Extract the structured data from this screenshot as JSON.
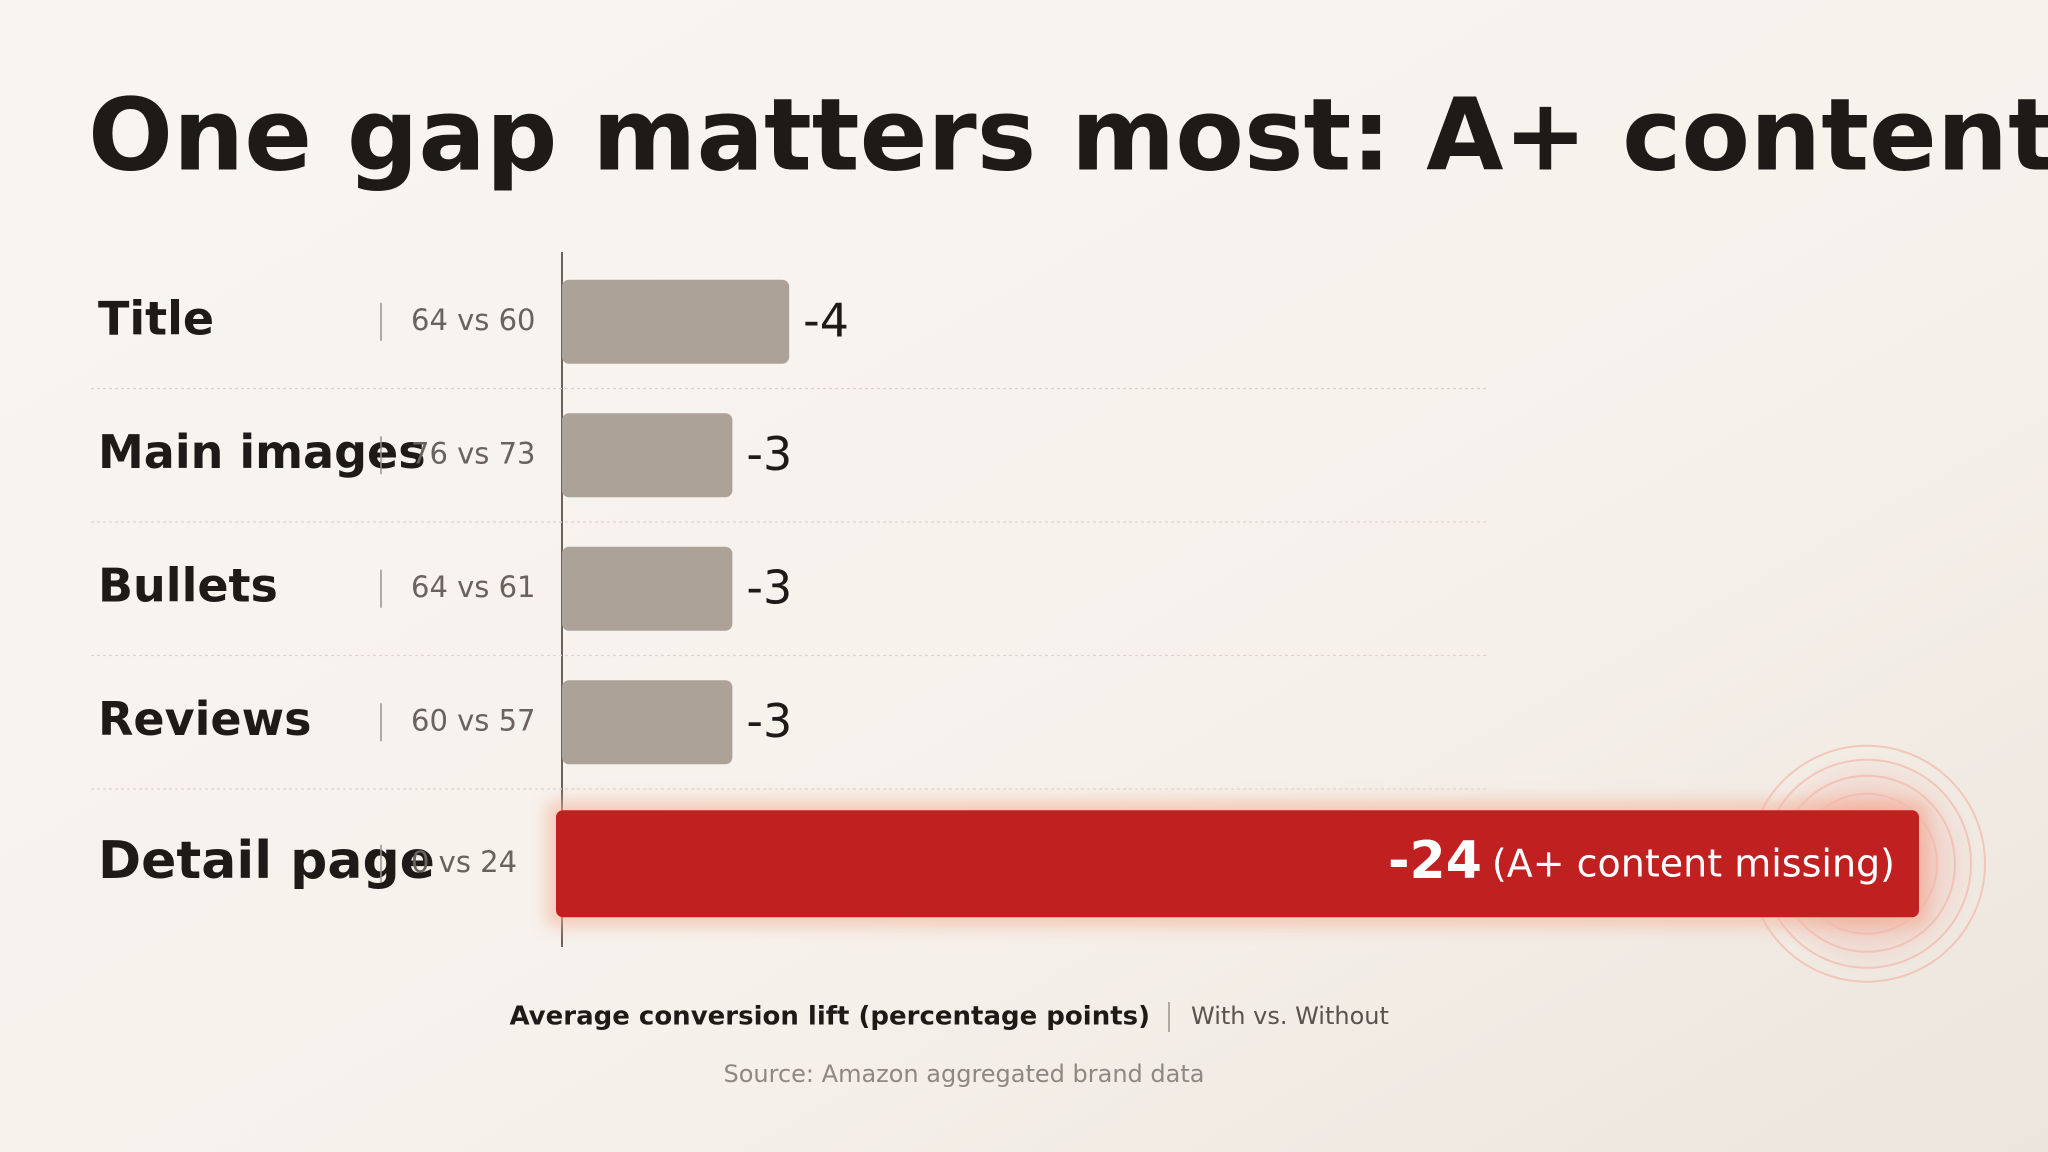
{
  "chart_data": {
    "type": "bar",
    "orientation": "horizontal",
    "title": "One gap matters most: A+ content",
    "categories": [
      "Title",
      "Main images",
      "Bullets",
      "Reviews",
      "Detail page"
    ],
    "comparisons": [
      "64 vs 60",
      "76 vs 73",
      "64 vs 61",
      "60 vs 57",
      "0 vs 24"
    ],
    "values": [
      -4,
      -3,
      -3,
      -3,
      -24
    ],
    "colors": [
      "#ada298",
      "#ada298",
      "#ada298",
      "#ada298",
      "#c0201f"
    ],
    "annotation": "(A+ content missing)",
    "x_label": "Average conversion lift (percentage points)",
    "comparison_label": "With vs. Without",
    "source": "Source: Amazon aggregated brand data"
  }
}
